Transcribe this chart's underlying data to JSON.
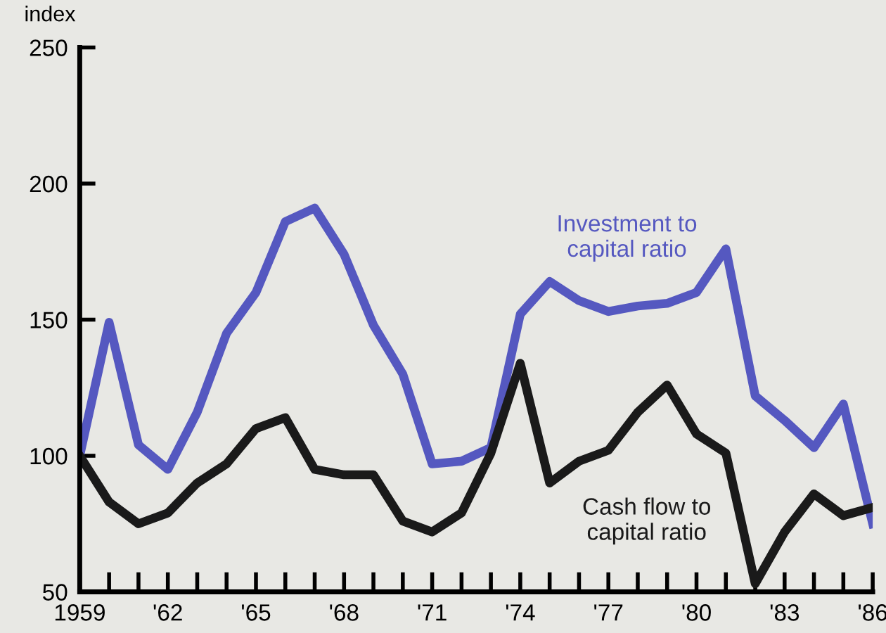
{
  "chart_data": {
    "type": "line",
    "ylabel": "index",
    "x": [
      1959,
      1960,
      1961,
      1962,
      1963,
      1964,
      1965,
      1966,
      1967,
      1968,
      1969,
      1970,
      1971,
      1972,
      1973,
      1974,
      1975,
      1976,
      1977,
      1978,
      1979,
      1980,
      1981,
      1982,
      1983,
      1984,
      1985,
      1986
    ],
    "series": [
      {
        "name": "Investment to capital ratio",
        "color": "#5558c0",
        "values": [
          100,
          149,
          104,
          95,
          116,
          145,
          160,
          186,
          191,
          174,
          148,
          130,
          97,
          98,
          103,
          152,
          164,
          157,
          153,
          155,
          156,
          160,
          176,
          122,
          113,
          103,
          119,
          75
        ]
      },
      {
        "name": "Cash flow to capital ratio",
        "color": "#1a1a1a",
        "values": [
          100,
          83,
          75,
          79,
          90,
          97,
          110,
          114,
          95,
          93,
          93,
          76,
          72,
          79,
          101,
          134,
          90,
          98,
          102,
          116,
          126,
          108,
          101,
          53,
          72,
          86,
          78,
          81
        ]
      }
    ],
    "xlim": [
      1959,
      1986
    ],
    "ylim": [
      50,
      250
    ],
    "yticks": [
      50,
      100,
      150,
      200,
      250
    ],
    "xticks": [
      1959,
      {
        "value": 1960,
        "label": null
      },
      {
        "value": 1961,
        "label": null
      },
      {
        "value": 1962,
        "label": "'62"
      },
      {
        "value": 1963,
        "label": null
      },
      {
        "value": 1964,
        "label": null
      },
      {
        "value": 1965,
        "label": "'65"
      },
      {
        "value": 1966,
        "label": null
      },
      {
        "value": 1967,
        "label": null
      },
      {
        "value": 1968,
        "label": "'68"
      },
      {
        "value": 1969,
        "label": null
      },
      {
        "value": 1970,
        "label": null
      },
      {
        "value": 1971,
        "label": "'71"
      },
      {
        "value": 1972,
        "label": null
      },
      {
        "value": 1973,
        "label": null
      },
      {
        "value": 1974,
        "label": "'74"
      },
      {
        "value": 1975,
        "label": null
      },
      {
        "value": 1976,
        "label": null
      },
      {
        "value": 1977,
        "label": "'77"
      },
      {
        "value": 1978,
        "label": null
      },
      {
        "value": 1979,
        "label": null
      },
      {
        "value": 1980,
        "label": "'80"
      },
      {
        "value": 1981,
        "label": null
      },
      {
        "value": 1982,
        "label": null
      },
      {
        "value": 1983,
        "label": "'83"
      },
      {
        "value": 1984,
        "label": null
      },
      {
        "value": 1985,
        "label": null
      },
      {
        "value": 1986,
        "label": "'86"
      }
    ],
    "grid": false,
    "legend": false,
    "marker": "none",
    "line_style": "solid"
  }
}
